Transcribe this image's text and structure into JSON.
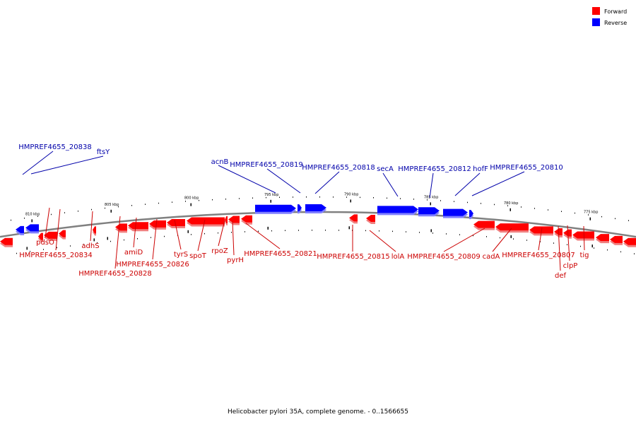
{
  "caption": "Helicobacter pylori 35A, complete genome. - 0..1566655",
  "legend": [
    {
      "label": "Forward",
      "color": "#ff0000"
    },
    {
      "label": "Reverse",
      "color": "#0000ff"
    }
  ],
  "colors": {
    "forward": "#ff0000",
    "forward_shadow": "#f08080",
    "reverse": "#0000ff",
    "reverse_shadow": "#8080ff",
    "backbone": "#808080"
  },
  "ticks": [
    "810 kbp",
    "805 kbp",
    "800 kbp",
    "795 kbp",
    "790 kbp",
    "785 kbp",
    "780 kbp",
    "775 kbp"
  ],
  "labels": {
    "top": [
      "HMPREF4655_20838",
      "ftsY",
      "acnB",
      "HMPREF4655_20819",
      "HMPREF4655_20818",
      "secA",
      "HMPREF4655_20812",
      "hofF",
      "HMPREF4655_20810"
    ],
    "bottom": [
      "pdsO",
      "HMPREF4655_20834",
      "adhS",
      "HMPREF4655_20828",
      "amiD",
      "HMPREF4655_20826",
      "tyrS",
      "spoT",
      "rpoZ",
      "pyrH",
      "HMPREF4655_20821",
      "HMPREF4655_20815",
      "lolA",
      "HMPREF4655_20809",
      "cadA",
      "HMPREF4655_20807",
      "clpP",
      "def",
      "tig"
    ]
  }
}
